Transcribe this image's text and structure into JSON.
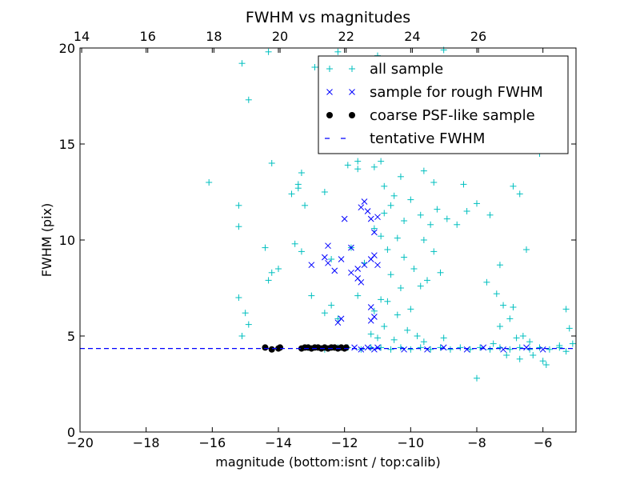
{
  "chart_data": {
    "type": "scatter",
    "title": "FWHM vs magnitudes",
    "xlabel": "magnitude (bottom:isnt / top:calib)",
    "ylabel": "FWHM (pix)",
    "xlim": [
      -20,
      -5
    ],
    "ylim": [
      0,
      20
    ],
    "x_ticks": [
      -20,
      -18,
      -16,
      -14,
      -12,
      -10,
      -8,
      -6
    ],
    "x_tick_labels": [
      "−20",
      "−18",
      "−16",
      "−14",
      "−12",
      "−10",
      "−8",
      "−6"
    ],
    "y_ticks": [
      0,
      5,
      10,
      15,
      20
    ],
    "y_tick_labels": [
      "0",
      "5",
      "10",
      "15",
      "20"
    ],
    "top_axis": {
      "offset": 33.95,
      "ticks": [
        14,
        16,
        18,
        20,
        22,
        24,
        26
      ],
      "tick_labels": [
        "14",
        "16",
        "18",
        "20",
        "22",
        "24",
        "26"
      ]
    },
    "grid": false,
    "legend_position": "top-right",
    "colors": {
      "all_sample": "#00bfbf",
      "rough_fwhm": "#0000ff",
      "psf_like": "#000000",
      "tentative": "#0000ff"
    },
    "tentative_fwhm": 4.35,
    "series": [
      {
        "name": "all sample",
        "marker": "+",
        "points": [
          [
            -15.1,
            19.2
          ],
          [
            -14.9,
            17.3
          ],
          [
            -14.3,
            19.8
          ],
          [
            -16.1,
            13.0
          ],
          [
            -15.2,
            11.8
          ],
          [
            -15.2,
            10.7
          ],
          [
            -14.2,
            14.0
          ],
          [
            -13.6,
            12.4
          ],
          [
            -13.4,
            12.9
          ],
          [
            -13.4,
            12.7
          ],
          [
            -13.3,
            13.5
          ],
          [
            -13.2,
            11.8
          ],
          [
            -12.6,
            12.5
          ],
          [
            -12.9,
            19.0
          ],
          [
            -12.2,
            19.8
          ],
          [
            -11.9,
            13.9
          ],
          [
            -11.6,
            13.7
          ],
          [
            -11.6,
            14.1
          ],
          [
            -11.1,
            13.8
          ],
          [
            -11.0,
            19.6
          ],
          [
            -10.9,
            14.1
          ],
          [
            -10.8,
            12.8
          ],
          [
            -10.4,
            19.3
          ],
          [
            -10.3,
            13.3
          ],
          [
            -9.6,
            13.6
          ],
          [
            -9.3,
            13.0
          ],
          [
            -8.9,
            14.8
          ],
          [
            -8.4,
            12.9
          ],
          [
            -6.9,
            12.8
          ],
          [
            -6.7,
            12.4
          ],
          [
            -6.1,
            14.5
          ],
          [
            -9.0,
            19.9
          ],
          [
            -15.2,
            7.0
          ],
          [
            -15.0,
            6.2
          ],
          [
            -14.9,
            5.6
          ],
          [
            -15.1,
            5.0
          ],
          [
            -14.3,
            7.9
          ],
          [
            -14.2,
            8.3
          ],
          [
            -14.0,
            8.5
          ],
          [
            -14.4,
            9.6
          ],
          [
            -13.5,
            9.8
          ],
          [
            -13.3,
            9.4
          ],
          [
            -13.0,
            7.1
          ],
          [
            -12.4,
            9.0
          ],
          [
            -12.6,
            6.2
          ],
          [
            -12.4,
            6.6
          ],
          [
            -12.2,
            5.9
          ],
          [
            -11.8,
            9.6
          ],
          [
            -11.4,
            8.8
          ],
          [
            -11.6,
            7.1
          ],
          [
            -11.1,
            6.3
          ],
          [
            -10.9,
            6.9
          ],
          [
            -10.7,
            9.5
          ],
          [
            -10.9,
            10.2
          ],
          [
            -11.1,
            10.6
          ],
          [
            -10.6,
            11.8
          ],
          [
            -10.5,
            12.3
          ],
          [
            -10.8,
            11.4
          ],
          [
            -10.2,
            11.0
          ],
          [
            -10.0,
            12.1
          ],
          [
            -9.7,
            11.3
          ],
          [
            -9.4,
            10.8
          ],
          [
            -9.2,
            11.6
          ],
          [
            -8.9,
            11.1
          ],
          [
            -8.6,
            10.8
          ],
          [
            -8.3,
            11.5
          ],
          [
            -8.0,
            11.9
          ],
          [
            -7.6,
            11.3
          ],
          [
            -10.4,
            10.1
          ],
          [
            -10.2,
            9.1
          ],
          [
            -9.9,
            8.5
          ],
          [
            -10.6,
            8.2
          ],
          [
            -10.3,
            7.5
          ],
          [
            -10.7,
            6.8
          ],
          [
            -10.4,
            6.1
          ],
          [
            -10.0,
            6.4
          ],
          [
            -10.8,
            5.5
          ],
          [
            -10.1,
            5.3
          ],
          [
            -9.8,
            5.0
          ],
          [
            -11.2,
            5.1
          ],
          [
            -11.0,
            4.9
          ],
          [
            -10.5,
            4.8
          ],
          [
            -9.6,
            4.7
          ],
          [
            -9.0,
            4.9
          ],
          [
            -7.5,
            4.6
          ],
          [
            -7.1,
            4.0
          ],
          [
            -6.7,
            3.8
          ],
          [
            -8.0,
            2.8
          ],
          [
            -6.3,
            4.0
          ],
          [
            -6.0,
            3.7
          ],
          [
            -5.9,
            3.5
          ],
          [
            -5.5,
            4.5
          ],
          [
            -5.3,
            4.2
          ],
          [
            -5.1,
            4.6
          ],
          [
            -5.2,
            5.4
          ],
          [
            -5.3,
            6.4
          ],
          [
            -6.6,
            5.0
          ],
          [
            -6.8,
            4.9
          ],
          [
            -6.4,
            4.7
          ],
          [
            -7.3,
            5.5
          ],
          [
            -7.0,
            5.9
          ],
          [
            -6.9,
            6.5
          ],
          [
            -6.5,
            9.5
          ],
          [
            -7.3,
            8.7
          ],
          [
            -7.7,
            7.8
          ],
          [
            -7.4,
            7.2
          ],
          [
            -7.2,
            6.6
          ],
          [
            -9.7,
            7.6
          ],
          [
            -9.5,
            7.9
          ],
          [
            -9.1,
            8.3
          ],
          [
            -9.3,
            9.4
          ],
          [
            -9.6,
            10.0
          ],
          [
            -13.1,
            4.4
          ],
          [
            -12.6,
            4.3
          ],
          [
            -12.2,
            4.4
          ],
          [
            -11.9,
            4.4
          ],
          [
            -11.5,
            4.3
          ],
          [
            -11.2,
            4.4
          ],
          [
            -10.9,
            4.4
          ],
          [
            -10.6,
            4.3
          ],
          [
            -10.3,
            4.4
          ],
          [
            -10.0,
            4.3
          ],
          [
            -9.7,
            4.4
          ],
          [
            -9.4,
            4.3
          ],
          [
            -9.1,
            4.4
          ],
          [
            -8.8,
            4.3
          ],
          [
            -8.5,
            4.4
          ],
          [
            -8.2,
            4.3
          ],
          [
            -7.9,
            4.4
          ],
          [
            -7.6,
            4.3
          ],
          [
            -7.3,
            4.4
          ],
          [
            -7.0,
            4.3
          ],
          [
            -6.7,
            4.4
          ],
          [
            -6.4,
            4.3
          ],
          [
            -6.1,
            4.4
          ],
          [
            -5.8,
            4.3
          ],
          [
            -5.5,
            4.4
          ]
        ]
      },
      {
        "name": "sample for rough FWHM",
        "marker": "x",
        "points": [
          [
            -13.0,
            8.7
          ],
          [
            -12.0,
            11.1
          ],
          [
            -12.5,
            9.7
          ],
          [
            -12.6,
            9.1
          ],
          [
            -12.3,
            8.4
          ],
          [
            -12.1,
            9.0
          ],
          [
            -12.5,
            8.8
          ],
          [
            -11.8,
            9.6
          ],
          [
            -11.4,
            12.0
          ],
          [
            -11.3,
            11.5
          ],
          [
            -11.5,
            11.7
          ],
          [
            -11.2,
            11.1
          ],
          [
            -11.0,
            11.2
          ],
          [
            -11.1,
            10.4
          ],
          [
            -11.6,
            8.5
          ],
          [
            -11.8,
            8.3
          ],
          [
            -11.6,
            8.0
          ],
          [
            -11.5,
            7.8
          ],
          [
            -11.1,
            9.2
          ],
          [
            -11.2,
            9.0
          ],
          [
            -11.0,
            8.7
          ],
          [
            -11.4,
            8.7
          ],
          [
            -11.2,
            6.5
          ],
          [
            -11.1,
            6.0
          ],
          [
            -11.2,
            5.8
          ],
          [
            -12.1,
            5.9
          ],
          [
            -12.2,
            5.7
          ],
          [
            -11.7,
            4.4
          ],
          [
            -11.5,
            4.3
          ],
          [
            -11.3,
            4.4
          ],
          [
            -11.1,
            4.3
          ],
          [
            -11.0,
            4.4
          ],
          [
            -10.2,
            4.3
          ],
          [
            -9.5,
            4.3
          ],
          [
            -9.0,
            4.4
          ],
          [
            -8.3,
            4.3
          ],
          [
            -7.8,
            4.4
          ],
          [
            -7.2,
            4.3
          ],
          [
            -6.5,
            4.4
          ],
          [
            -6.0,
            4.3
          ]
        ]
      },
      {
        "name": "coarse PSF-like sample",
        "marker": "o",
        "points": [
          [
            -14.4,
            4.4
          ],
          [
            -14.2,
            4.3
          ],
          [
            -14.0,
            4.35
          ],
          [
            -13.95,
            4.4
          ],
          [
            -13.3,
            4.35
          ],
          [
            -13.2,
            4.4
          ],
          [
            -13.1,
            4.4
          ],
          [
            -13.0,
            4.35
          ],
          [
            -12.9,
            4.4
          ],
          [
            -12.8,
            4.4
          ],
          [
            -12.7,
            4.35
          ],
          [
            -12.6,
            4.4
          ],
          [
            -12.5,
            4.35
          ],
          [
            -12.4,
            4.4
          ],
          [
            -12.3,
            4.4
          ],
          [
            -12.2,
            4.35
          ],
          [
            -12.1,
            4.4
          ],
          [
            -12.0,
            4.35
          ],
          [
            -11.95,
            4.4
          ]
        ]
      },
      {
        "name": "tentative FWHM",
        "marker": "dashed-line"
      }
    ]
  }
}
